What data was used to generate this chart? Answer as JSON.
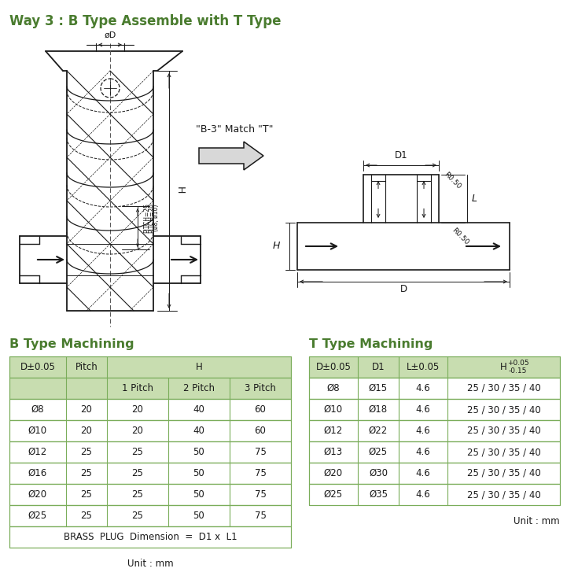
{
  "title": "Way 3 : B Type Assemble with T Type",
  "title_color": "#4a7c2f",
  "bg_color": "#ffffff",
  "match_text": "\"B-3\" Match \"T\"",
  "b_table_title": "B Type Machining",
  "t_table_title": "T Type Machining",
  "header_bg": "#c8ddb0",
  "b_data": [
    [
      "Ø8",
      "20",
      "20",
      "40",
      "60"
    ],
    [
      "Ø10",
      "20",
      "20",
      "40",
      "60"
    ],
    [
      "Ø12",
      "25",
      "25",
      "50",
      "75"
    ],
    [
      "Ø16",
      "25",
      "25",
      "50",
      "75"
    ],
    [
      "Ø20",
      "25",
      "25",
      "50",
      "75"
    ],
    [
      "Ø25",
      "25",
      "25",
      "50",
      "75"
    ]
  ],
  "b_footer": "BRASS  PLUG  Dimension  =  D1 x  L1",
  "b_unit": "Unit : mm",
  "t_data": [
    [
      "Ø8",
      "Ø15",
      "4.6",
      "25 / 30 / 35 / 40"
    ],
    [
      "Ø10",
      "Ø18",
      "4.6",
      "25 / 30 / 35 / 40"
    ],
    [
      "Ø12",
      "Ø22",
      "4.6",
      "25 / 30 / 35 / 40"
    ],
    [
      "Ø13",
      "Ø25",
      "4.6",
      "25 / 30 / 35 / 40"
    ],
    [
      "Ø20",
      "Ø30",
      "4.6",
      "25 / 30 / 35 / 40"
    ],
    [
      "Ø25",
      "Ø35",
      "4.6",
      "25 / 30 / 35 / 40"
    ]
  ],
  "t_unit": "Unit : mm",
  "green_color": "#4a7c2f",
  "black": "#1a1a1a",
  "gray": "#888888",
  "table_line_color": "#7aad5a"
}
